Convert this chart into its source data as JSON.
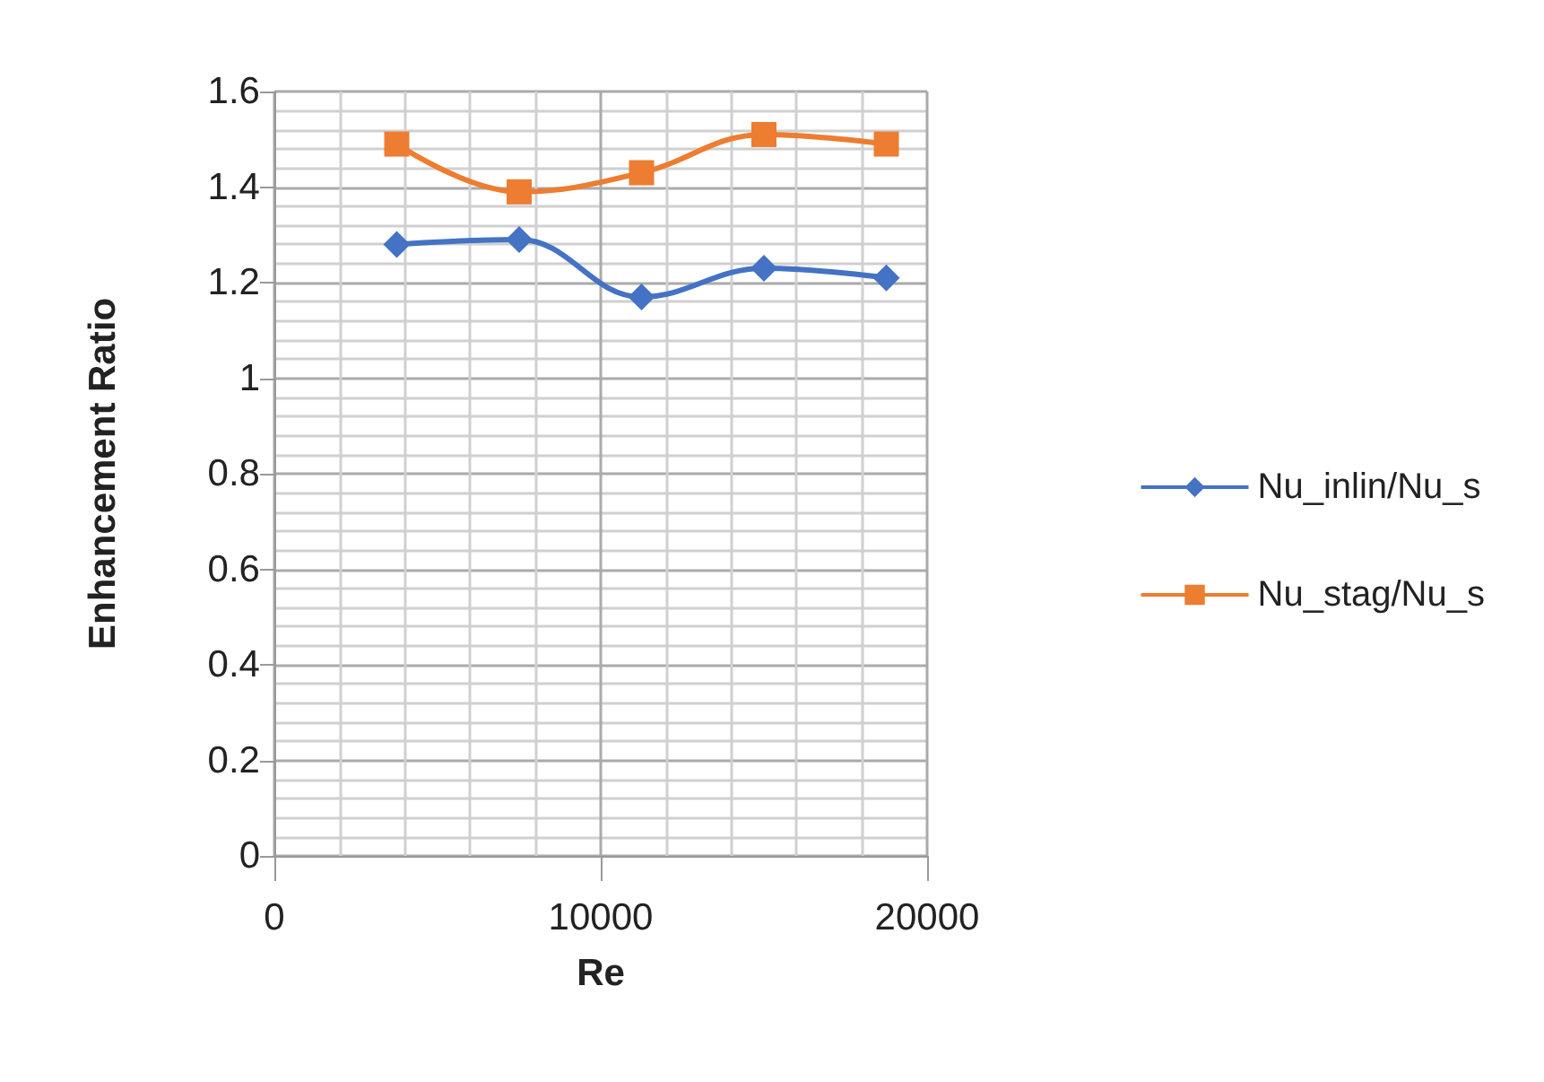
{
  "chart_data": {
    "type": "line",
    "xlabel": "Re",
    "ylabel": "Enhancement Ratio",
    "x": [
      3750,
      7500,
      11250,
      15000,
      18750
    ],
    "series": [
      {
        "name": "Nu_inlin/Nu_s",
        "color": "#4472c4",
        "marker": "diamond",
        "values": [
          1.28,
          1.29,
          1.17,
          1.23,
          1.21
        ]
      },
      {
        "name": "Nu_stag/Nu_s",
        "color": "#ed7d31",
        "marker": "square",
        "values": [
          1.49,
          1.39,
          1.43,
          1.51,
          1.49
        ]
      }
    ],
    "xlim": [
      0,
      20000
    ],
    "xticks": [
      0,
      10000,
      20000
    ],
    "ylim": [
      0,
      1.6
    ],
    "yticks": [
      0,
      0.2,
      0.4,
      0.6,
      0.8,
      1,
      1.2,
      1.4,
      1.6
    ],
    "grid": true,
    "legend": "right"
  }
}
